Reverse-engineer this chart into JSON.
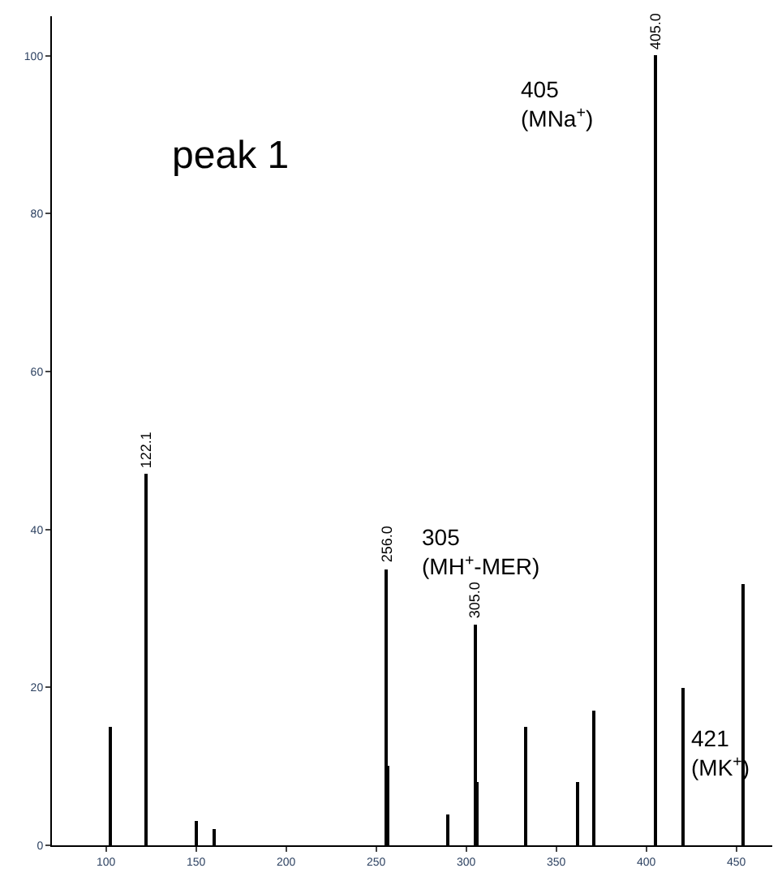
{
  "chart_data": {
    "type": "bar",
    "title": "peak 1",
    "x": [
      103,
      122.1,
      150,
      160,
      256,
      257,
      290,
      305,
      306,
      333,
      362,
      371,
      405,
      421,
      454
    ],
    "series": [
      {
        "color": "#000000",
        "values": [
          15,
          47,
          3,
          2,
          35,
          10,
          4,
          28,
          8,
          15,
          8,
          17,
          100,
          20,
          33
        ]
      }
    ],
    "xlim": [
      70,
      470
    ],
    "xticks": [
      100,
      150,
      200,
      250,
      300,
      350,
      400,
      450
    ],
    "ylim": [
      0,
      105
    ],
    "yticks": [
      0,
      20,
      40,
      60,
      80,
      100
    ],
    "annotations": [
      {
        "text": "405\n(MNa$^{+}$)",
        "x": 405,
        "y": 100
      },
      {
        "text": "305\n(MH$^{+}$-MER)",
        "x": 305,
        "y": 28
      },
      {
        "text": "421\n(MK$^{+}$)",
        "x": 421,
        "y": 20
      },
      {
        "text": "122.1",
        "x": 122.1,
        "y": 47
      },
      {
        "text": "256.0",
        "x": 256,
        "y": 35
      },
      {
        "text": "305.0",
        "x": 305,
        "y": 28
      },
      {
        "text": "405.0",
        "x": 405,
        "y": 100
      }
    ]
  }
}
